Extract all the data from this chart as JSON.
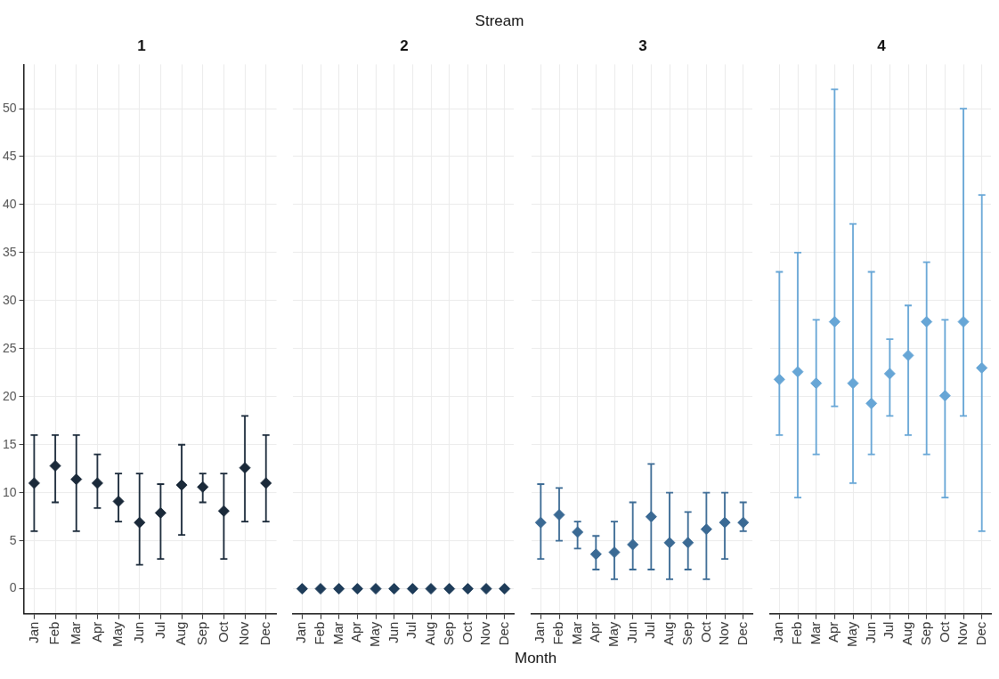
{
  "chart_data": [
    {
      "type": "scatter",
      "title": "1",
      "annotations": [
        "Stream"
      ],
      "categories": [
        "Jan",
        "Feb",
        "Mar",
        "Apr",
        "May",
        "Jun",
        "Jul",
        "Aug",
        "Sep",
        "Oct",
        "Nov",
        "Dec"
      ],
      "marker": "diamond",
      "grid": true,
      "ylim": [
        -2.6,
        54.6
      ],
      "yticks": [
        0,
        5,
        10,
        15,
        20,
        25,
        30,
        35,
        40,
        45,
        50
      ],
      "series": [
        {
          "color": "#1b2a3a",
          "values": [
            11,
            12.8,
            11.4,
            11,
            9.1,
            6.9,
            7.9,
            10.8,
            10.6,
            8.1,
            12.6,
            11
          ],
          "errors": [
            [
              6,
              16
            ],
            [
              9,
              16
            ],
            [
              6,
              16
            ],
            [
              8.4,
              14
            ],
            [
              7,
              12
            ],
            [
              2.5,
              12
            ],
            [
              3.1,
              10.9
            ],
            [
              5.6,
              15
            ],
            [
              9,
              12
            ],
            [
              3.1,
              12
            ],
            [
              7,
              18
            ],
            [
              7,
              16
            ]
          ]
        }
      ]
    },
    {
      "type": "scatter",
      "title": "2",
      "categories": [
        "Jan",
        "Feb",
        "Mar",
        "Apr",
        "May",
        "Jun",
        "Jul",
        "Aug",
        "Sep",
        "Oct",
        "Nov",
        "Dec"
      ],
      "marker": "diamond",
      "grid": true,
      "tick_labels": "x",
      "ylim": [
        -2.6,
        54.6
      ],
      "yticks": [
        0,
        5,
        10,
        15,
        20,
        25,
        30,
        35,
        40,
        45,
        50
      ],
      "series": [
        {
          "color": "#1f3d5a",
          "values": [
            0,
            0,
            0,
            0,
            0,
            0,
            0,
            0,
            0,
            0,
            0,
            0
          ]
        }
      ]
    },
    {
      "type": "scatter",
      "title": "3",
      "xlabel": "Month",
      "categories": [
        "Jan",
        "Feb",
        "Mar",
        "Apr",
        "May",
        "Jun",
        "Jul",
        "Aug",
        "Sep",
        "Oct",
        "Nov",
        "Dec"
      ],
      "marker": "diamond",
      "grid": true,
      "tick_labels": "x",
      "ylim": [
        -2.6,
        54.6
      ],
      "yticks": [
        0,
        5,
        10,
        15,
        20,
        25,
        30,
        35,
        40,
        45,
        50
      ],
      "series": [
        {
          "color": "#3b6a94",
          "values": [
            6.9,
            7.7,
            5.9,
            3.6,
            3.8,
            4.6,
            7.5,
            4.8,
            4.8,
            6.2,
            6.9,
            6.9
          ],
          "errors": [
            [
              3.1,
              10.9
            ],
            [
              5,
              10.5
            ],
            [
              4.2,
              7
            ],
            [
              2,
              5.5
            ],
            [
              1,
              7
            ],
            [
              2,
              9
            ],
            [
              2,
              13
            ],
            [
              1,
              10
            ],
            [
              2,
              8
            ],
            [
              1,
              10
            ],
            [
              3.1,
              10
            ],
            [
              6,
              9
            ]
          ]
        }
      ]
    },
    {
      "type": "scatter",
      "title": "4",
      "categories": [
        "Jan",
        "Feb",
        "Mar",
        "Apr",
        "May",
        "Jun",
        "Jul",
        "Aug",
        "Sep",
        "Oct",
        "Nov",
        "Dec"
      ],
      "marker": "diamond",
      "grid": true,
      "tick_labels": "x",
      "ylim": [
        -2.6,
        54.6
      ],
      "yticks": [
        0,
        5,
        10,
        15,
        20,
        25,
        30,
        35,
        40,
        45,
        50
      ],
      "series": [
        {
          "color": "#67a6d6",
          "values": [
            21.8,
            22.6,
            21.4,
            27.8,
            21.4,
            19.3,
            22.4,
            24.3,
            27.8,
            20.1,
            27.8,
            23
          ],
          "errors": [
            [
              16,
              33
            ],
            [
              9.5,
              35
            ],
            [
              14,
              28
            ],
            [
              19,
              52
            ],
            [
              11,
              38
            ],
            [
              14,
              33
            ],
            [
              18,
              26
            ],
            [
              16,
              29.5
            ],
            [
              14,
              34
            ],
            [
              9.5,
              28
            ],
            [
              18,
              50
            ],
            [
              6,
              41
            ]
          ]
        }
      ]
    }
  ]
}
